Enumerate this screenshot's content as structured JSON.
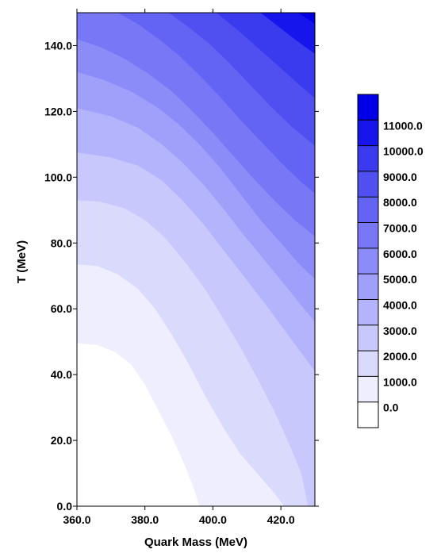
{
  "chart_data": {
    "type": "heatmap",
    "subtype": "filled-contour",
    "title": "",
    "xlabel": "Quark Mass (MeV)",
    "ylabel": "T (MeV)",
    "xlim": [
      360,
      430
    ],
    "ylim": [
      0,
      150
    ],
    "x_ticks": [
      360,
      380,
      400,
      420
    ],
    "x_tick_labels": [
      "360.0",
      "380.0",
      "400.0",
      "420.0"
    ],
    "y_ticks": [
      0,
      20,
      40,
      60,
      80,
      100,
      120,
      140
    ],
    "y_tick_labels": [
      "0.0",
      "20.0",
      "40.0",
      "60.0",
      "80.0",
      "100.0",
      "120.0",
      "140.0"
    ],
    "colorbar": {
      "levels": [
        0,
        1000,
        2000,
        3000,
        4000,
        5000,
        6000,
        7000,
        8000,
        9000,
        10000,
        11000
      ],
      "labels": [
        "0.0",
        "1000.0",
        "2000.0",
        "3000.0",
        "4000.0",
        "5000.0",
        "6000.0",
        "7000.0",
        "8000.0",
        "9000.0",
        "10000.0",
        "11000.0"
      ],
      "colors": [
        "#ffffff",
        "#eeeefe",
        "#dadafd",
        "#c8c8fc",
        "#b4b4fc",
        "#a0a0fa",
        "#8c8cf8",
        "#7878f6",
        "#6464f4",
        "#5050f0",
        "#3a3aee",
        "#1515ec",
        "#0000e6"
      ]
    },
    "contour_lines": [
      {
        "level": 1000,
        "points": [
          [
            360,
            49.5
          ],
          [
            366,
            49
          ],
          [
            371,
            47
          ],
          [
            376,
            43
          ],
          [
            380,
            37
          ],
          [
            384,
            29
          ],
          [
            388,
            21
          ],
          [
            391.5,
            13
          ],
          [
            394.5,
            5
          ],
          [
            396,
            0
          ]
        ]
      },
      {
        "level": 2000,
        "points": [
          [
            360,
            73.5
          ],
          [
            366,
            73
          ],
          [
            372,
            70.5
          ],
          [
            378,
            66
          ],
          [
            383,
            60
          ],
          [
            388,
            52
          ],
          [
            393,
            43
          ],
          [
            398,
            33
          ],
          [
            403,
            24
          ],
          [
            408,
            16
          ],
          [
            413,
            10
          ],
          [
            418,
            4
          ],
          [
            421,
            0
          ]
        ]
      },
      {
        "level": 3000,
        "points": [
          [
            360,
            93
          ],
          [
            367,
            92.5
          ],
          [
            374,
            90.5
          ],
          [
            380,
            87
          ],
          [
            386,
            81.5
          ],
          [
            392,
            74
          ],
          [
            398,
            65.5
          ],
          [
            403,
            57
          ],
          [
            408,
            48.5
          ],
          [
            413,
            39
          ],
          [
            418,
            29
          ],
          [
            422,
            20
          ],
          [
            426,
            10
          ],
          [
            428,
            0
          ]
        ]
      },
      {
        "level": 4000,
        "points": [
          [
            360,
            107.5
          ],
          [
            370,
            106
          ],
          [
            378,
            103.5
          ],
          [
            385,
            99
          ],
          [
            391,
            93
          ],
          [
            397,
            86
          ],
          [
            403,
            78
          ],
          [
            409,
            70
          ],
          [
            415,
            62
          ],
          [
            420,
            55
          ],
          [
            425,
            48
          ],
          [
            430,
            41
          ]
        ]
      },
      {
        "level": 5000,
        "points": [
          [
            360,
            121
          ],
          [
            370,
            118.5
          ],
          [
            378,
            115
          ],
          [
            385,
            110
          ],
          [
            391,
            104.5
          ],
          [
            397,
            98
          ],
          [
            403,
            90.5
          ],
          [
            409,
            82.5
          ],
          [
            415,
            75
          ],
          [
            421,
            67.5
          ],
          [
            426,
            61
          ],
          [
            430,
            56
          ]
        ]
      },
      {
        "level": 6000,
        "points": [
          [
            360,
            132
          ],
          [
            368,
            129.5
          ],
          [
            376,
            126
          ],
          [
            384,
            121
          ],
          [
            390,
            116
          ],
          [
            396,
            110
          ],
          [
            402,
            103
          ],
          [
            408,
            95
          ],
          [
            414,
            87
          ],
          [
            420,
            80
          ],
          [
            425,
            74
          ],
          [
            430,
            69
          ]
        ]
      },
      {
        "level": 7000,
        "points": [
          [
            360,
            142
          ],
          [
            367,
            139.5
          ],
          [
            374,
            136
          ],
          [
            381,
            131.5
          ],
          [
            388,
            126
          ],
          [
            394,
            120
          ],
          [
            400,
            113.5
          ],
          [
            406,
            106.5
          ],
          [
            412,
            99.5
          ],
          [
            418,
            93
          ],
          [
            424,
            87
          ],
          [
            430,
            82
          ]
        ]
      },
      {
        "level": 8000,
        "points": [
          [
            372,
            150
          ],
          [
            378,
            146.5
          ],
          [
            384,
            142
          ],
          [
            390,
            137
          ],
          [
            396,
            131
          ],
          [
            402,
            124.5
          ],
          [
            408,
            117.5
          ],
          [
            414,
            111
          ],
          [
            420,
            104.5
          ],
          [
            426,
            98.5
          ],
          [
            430,
            95
          ]
        ]
      },
      {
        "level": 9000,
        "points": [
          [
            387,
            150
          ],
          [
            393,
            145.5
          ],
          [
            399,
            140.5
          ],
          [
            405,
            134.5
          ],
          [
            411,
            128
          ],
          [
            417,
            121.5
          ],
          [
            423,
            115.5
          ],
          [
            430,
            109.5
          ]
        ]
      },
      {
        "level": 10000,
        "points": [
          [
            401,
            150
          ],
          [
            407,
            145
          ],
          [
            413,
            139.5
          ],
          [
            419,
            134
          ],
          [
            425,
            128.5
          ],
          [
            430,
            124
          ]
        ]
      },
      {
        "level": 11000,
        "points": [
          [
            414,
            150
          ],
          [
            419,
            146
          ],
          [
            424,
            142
          ],
          [
            430,
            137.5
          ]
        ]
      },
      {
        "level": 12000,
        "points": [
          [
            425,
            150
          ],
          [
            428,
            148
          ],
          [
            430,
            146.5
          ]
        ]
      }
    ]
  }
}
